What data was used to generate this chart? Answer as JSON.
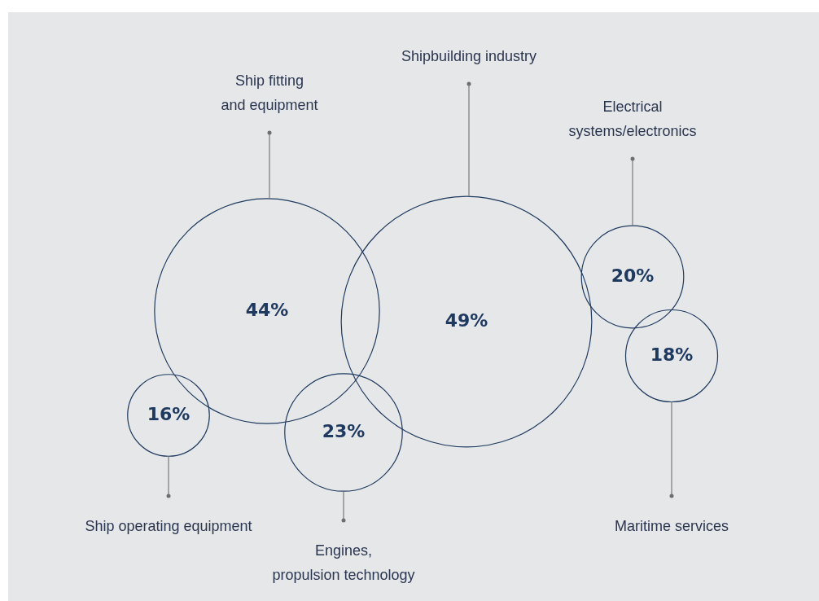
{
  "chart_data": {
    "type": "other",
    "categories": [
      "Ship fitting\nand equipment",
      "Shipbuilding industry",
      "Electrical\nsystems/electronics",
      "Maritime services",
      "Ship operating equipment",
      "Engines,\npropulsion technology"
    ],
    "values": [
      44,
      49,
      20,
      18,
      16,
      23
    ],
    "value_labels": [
      "44%",
      "49%",
      "20%",
      "18%",
      "16%",
      "23%"
    ],
    "color": "#1f3a60"
  }
}
